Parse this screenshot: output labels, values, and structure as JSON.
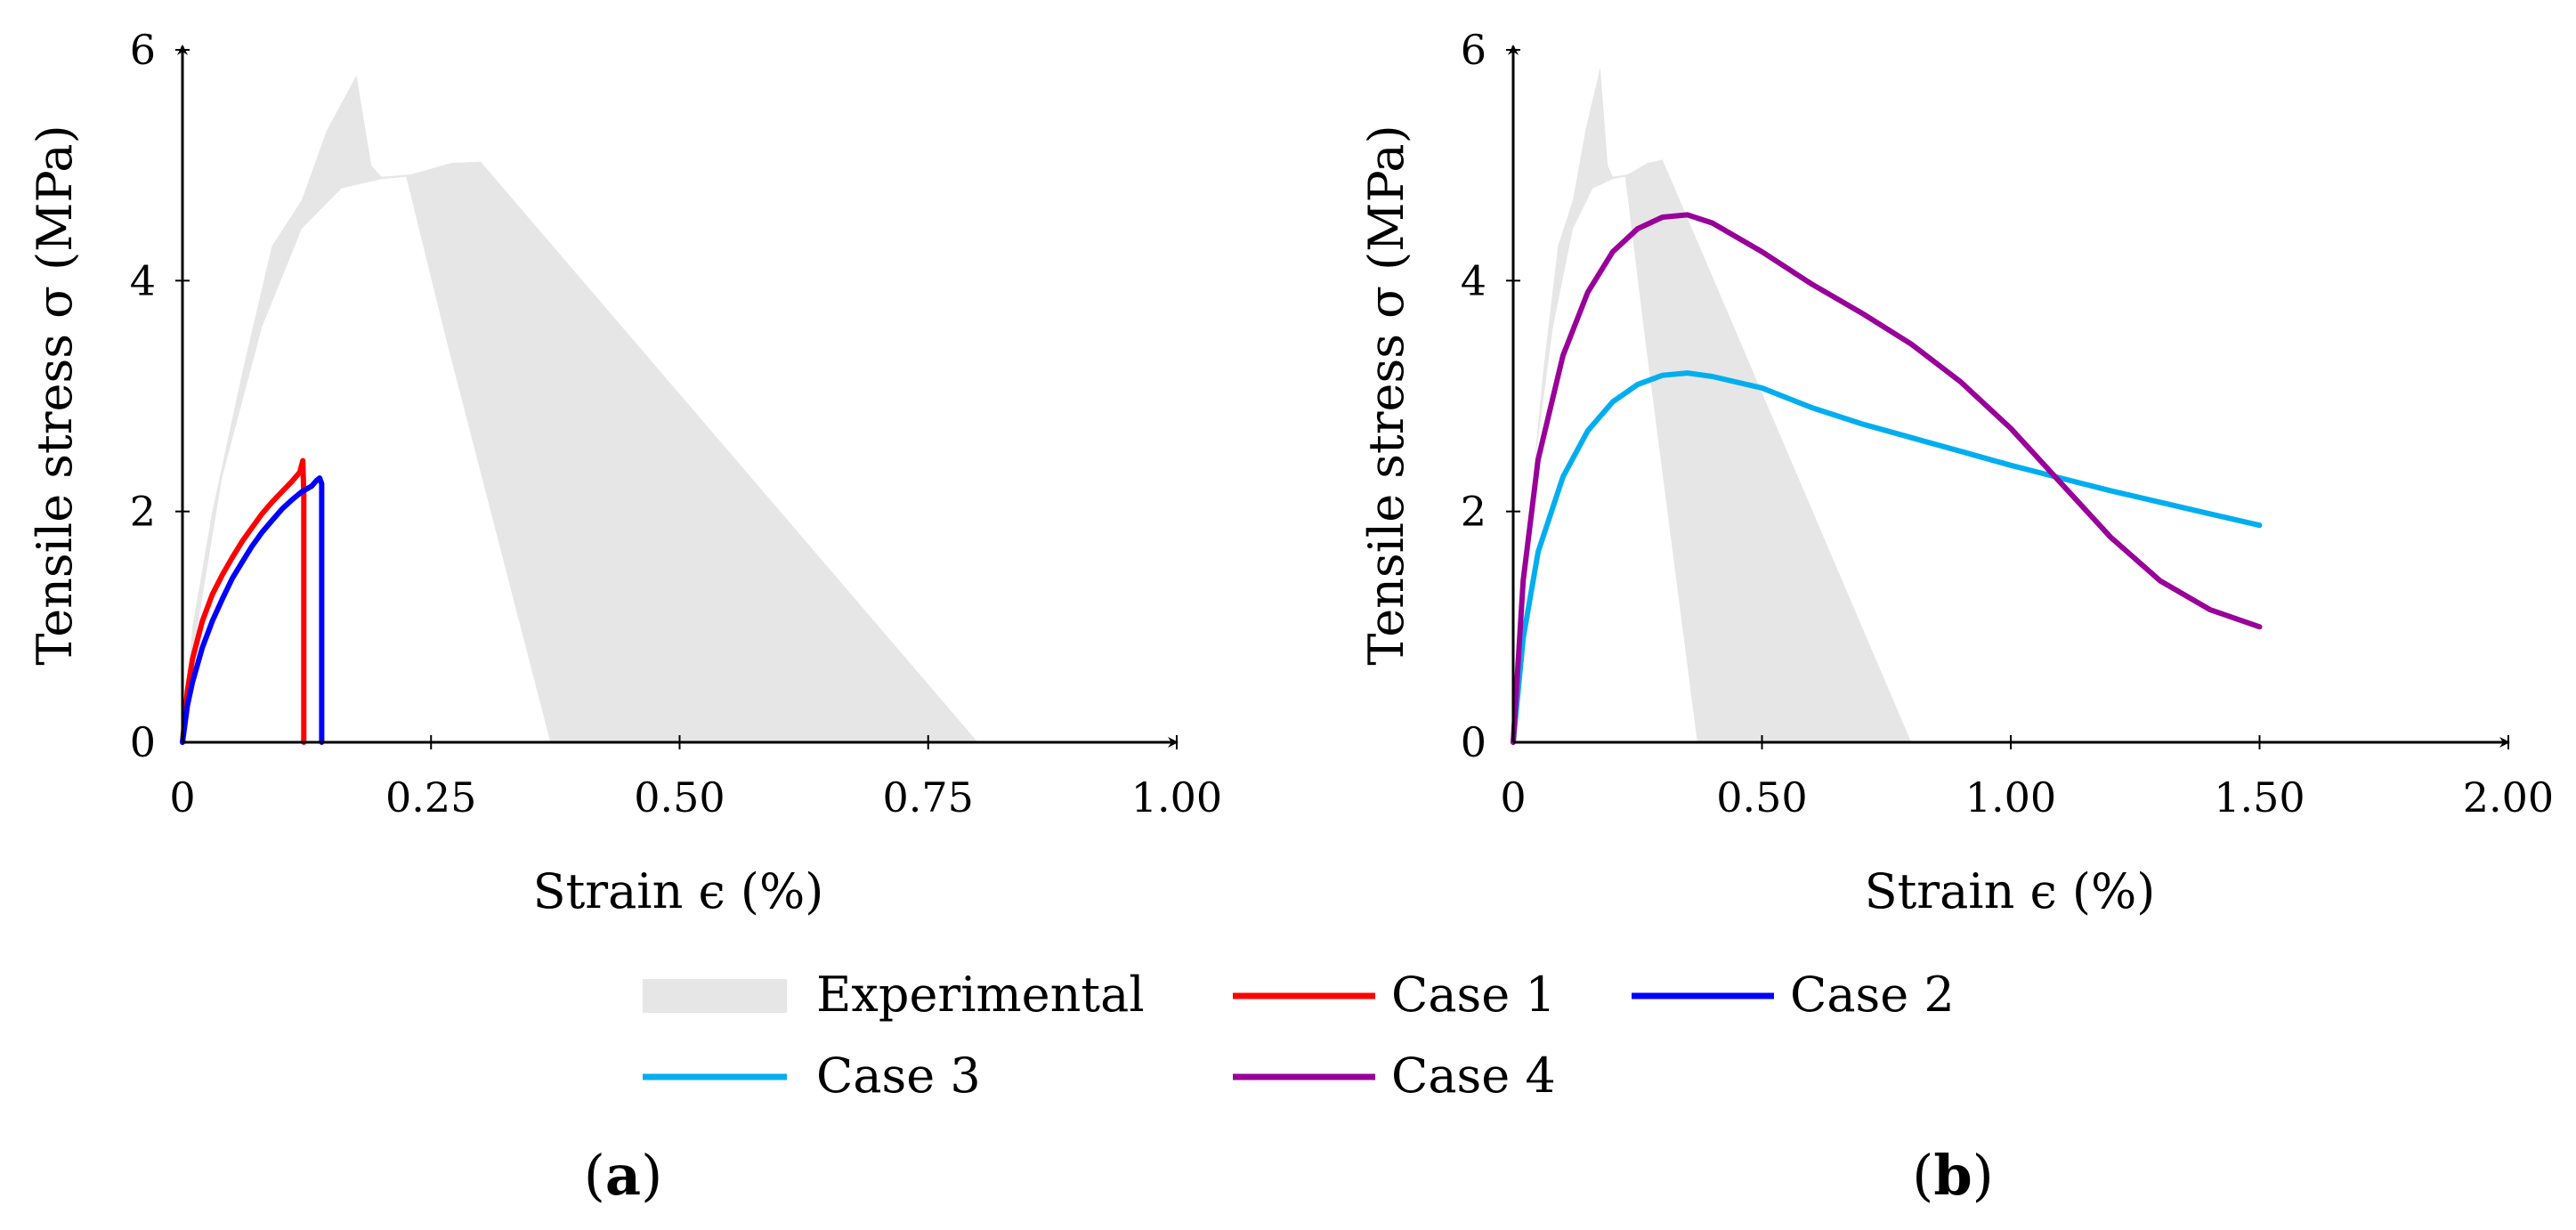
{
  "chart_data": [
    {
      "id": "a",
      "type": "line",
      "panel_label": {
        "open": "(",
        "letter": "a",
        "close": ")"
      },
      "xlabel": "Strain ϵ (%)",
      "ylabel": "Tensile stress σ (MPa)",
      "xlim": [
        0,
        1.0
      ],
      "ylim": [
        0,
        6
      ],
      "xticks": [
        0,
        0.25,
        0.5,
        0.75,
        1.0
      ],
      "xtick_labels": [
        "0",
        "0.25",
        "0.50",
        "0.75",
        "1.00"
      ],
      "yticks": [
        0,
        2,
        4,
        6
      ],
      "ytick_labels": [
        "0",
        "2",
        "4",
        "6"
      ],
      "band": {
        "name": "Experimental",
        "color": "#e6e6e6",
        "upper": [
          [
            0,
            0
          ],
          [
            0.01,
            1.0
          ],
          [
            0.03,
            2.0
          ],
          [
            0.06,
            3.2
          ],
          [
            0.09,
            4.3
          ],
          [
            0.12,
            4.7
          ],
          [
            0.145,
            5.3
          ],
          [
            0.175,
            5.78
          ],
          [
            0.19,
            5.0
          ],
          [
            0.2,
            4.9
          ],
          [
            0.23,
            4.92
          ],
          [
            0.27,
            5.02
          ],
          [
            0.3,
            5.03
          ],
          [
            0.8,
            0
          ]
        ],
        "lower": [
          [
            0.37,
            0
          ],
          [
            0.265,
            3.5
          ],
          [
            0.225,
            4.9
          ],
          [
            0.2,
            4.88
          ],
          [
            0.16,
            4.8
          ],
          [
            0.12,
            4.45
          ],
          [
            0.08,
            3.6
          ],
          [
            0.04,
            2.3
          ],
          [
            0.015,
            1.0
          ],
          [
            0,
            0
          ]
        ]
      },
      "series": [
        {
          "name": "Case 1",
          "color": "#ff0000",
          "points": [
            [
              0,
              0
            ],
            [
              0.005,
              0.45
            ],
            [
              0.01,
              0.72
            ],
            [
              0.02,
              1.05
            ],
            [
              0.03,
              1.28
            ],
            [
              0.04,
              1.45
            ],
            [
              0.05,
              1.6
            ],
            [
              0.06,
              1.74
            ],
            [
              0.07,
              1.86
            ],
            [
              0.08,
              1.98
            ],
            [
              0.09,
              2.08
            ],
            [
              0.1,
              2.17
            ],
            [
              0.11,
              2.26
            ],
            [
              0.118,
              2.34
            ],
            [
              0.121,
              2.44
            ],
            [
              0.122,
              2.15
            ],
            [
              0.122,
              0
            ]
          ]
        },
        {
          "name": "Case 2",
          "color": "#0000ff",
          "points": [
            [
              0,
              0
            ],
            [
              0.005,
              0.32
            ],
            [
              0.01,
              0.52
            ],
            [
              0.02,
              0.82
            ],
            [
              0.03,
              1.05
            ],
            [
              0.04,
              1.24
            ],
            [
              0.05,
              1.42
            ],
            [
              0.06,
              1.56
            ],
            [
              0.07,
              1.7
            ],
            [
              0.08,
              1.82
            ],
            [
              0.09,
              1.92
            ],
            [
              0.1,
              2.02
            ],
            [
              0.11,
              2.1
            ],
            [
              0.12,
              2.17
            ],
            [
              0.13,
              2.22
            ],
            [
              0.135,
              2.27
            ],
            [
              0.138,
              2.29
            ],
            [
              0.14,
              2.24
            ],
            [
              0.14,
              0
            ]
          ]
        }
      ]
    },
    {
      "id": "b",
      "type": "line",
      "panel_label": {
        "open": "(",
        "letter": "b",
        "close": ")"
      },
      "xlabel": "Strain ϵ (%)",
      "ylabel": "Tensile stress σ (MPa)",
      "xlim": [
        0,
        2.0
      ],
      "ylim": [
        0,
        6
      ],
      "xticks": [
        0,
        0.5,
        1.0,
        1.5,
        2.0
      ],
      "xtick_labels": [
        "0",
        "0.50",
        "1.00",
        "1.50",
        "2.00"
      ],
      "yticks": [
        0,
        2,
        4,
        6
      ],
      "ytick_labels": [
        "0",
        "2",
        "4",
        "6"
      ],
      "band": {
        "name": "Experimental",
        "color": "#e6e6e6",
        "upper": [
          [
            0,
            0
          ],
          [
            0.02,
            1.4
          ],
          [
            0.06,
            3.2
          ],
          [
            0.09,
            4.3
          ],
          [
            0.12,
            4.7
          ],
          [
            0.145,
            5.3
          ],
          [
            0.175,
            5.85
          ],
          [
            0.19,
            5.0
          ],
          [
            0.2,
            4.9
          ],
          [
            0.23,
            4.92
          ],
          [
            0.27,
            5.02
          ],
          [
            0.3,
            5.05
          ],
          [
            0.8,
            0
          ]
        ],
        "lower": [
          [
            0.37,
            0
          ],
          [
            0.265,
            3.5
          ],
          [
            0.225,
            4.9
          ],
          [
            0.2,
            4.88
          ],
          [
            0.16,
            4.8
          ],
          [
            0.12,
            4.45
          ],
          [
            0.08,
            3.6
          ],
          [
            0.04,
            2.3
          ],
          [
            0.015,
            1.0
          ],
          [
            0,
            0
          ]
        ]
      },
      "series": [
        {
          "name": "Case 3",
          "color": "#00aeef",
          "points": [
            [
              0,
              0
            ],
            [
              0.02,
              0.9
            ],
            [
              0.05,
              1.65
            ],
            [
              0.1,
              2.3
            ],
            [
              0.15,
              2.7
            ],
            [
              0.2,
              2.95
            ],
            [
              0.25,
              3.1
            ],
            [
              0.3,
              3.18
            ],
            [
              0.35,
              3.2
            ],
            [
              0.4,
              3.17
            ],
            [
              0.5,
              3.07
            ],
            [
              0.6,
              2.9
            ],
            [
              0.7,
              2.76
            ],
            [
              0.8,
              2.64
            ],
            [
              0.9,
              2.52
            ],
            [
              1.0,
              2.4
            ],
            [
              1.1,
              2.29
            ],
            [
              1.2,
              2.18
            ],
            [
              1.3,
              2.08
            ],
            [
              1.4,
              1.98
            ],
            [
              1.5,
              1.88
            ]
          ]
        },
        {
          "name": "Case 4",
          "color": "#990099",
          "points": [
            [
              0,
              0
            ],
            [
              0.02,
              1.4
            ],
            [
              0.05,
              2.45
            ],
            [
              0.1,
              3.35
            ],
            [
              0.15,
              3.9
            ],
            [
              0.2,
              4.25
            ],
            [
              0.25,
              4.45
            ],
            [
              0.3,
              4.55
            ],
            [
              0.35,
              4.57
            ],
            [
              0.4,
              4.5
            ],
            [
              0.5,
              4.25
            ],
            [
              0.6,
              3.97
            ],
            [
              0.7,
              3.72
            ],
            [
              0.8,
              3.45
            ],
            [
              0.9,
              3.12
            ],
            [
              1.0,
              2.72
            ],
            [
              1.1,
              2.25
            ],
            [
              1.2,
              1.78
            ],
            [
              1.3,
              1.4
            ],
            [
              1.4,
              1.15
            ],
            [
              1.5,
              1.0
            ]
          ]
        }
      ]
    }
  ],
  "legend": {
    "items": [
      {
        "label": "Experimental",
        "kind": "band",
        "color": "#e6e6e6"
      },
      {
        "label": "Case 1",
        "kind": "line",
        "color": "#ff0000"
      },
      {
        "label": "Case 2",
        "kind": "line",
        "color": "#0000ff"
      },
      {
        "label": "Case 3",
        "kind": "line",
        "color": "#00aeef"
      },
      {
        "label": "Case 4",
        "kind": "line",
        "color": "#990099"
      }
    ]
  }
}
